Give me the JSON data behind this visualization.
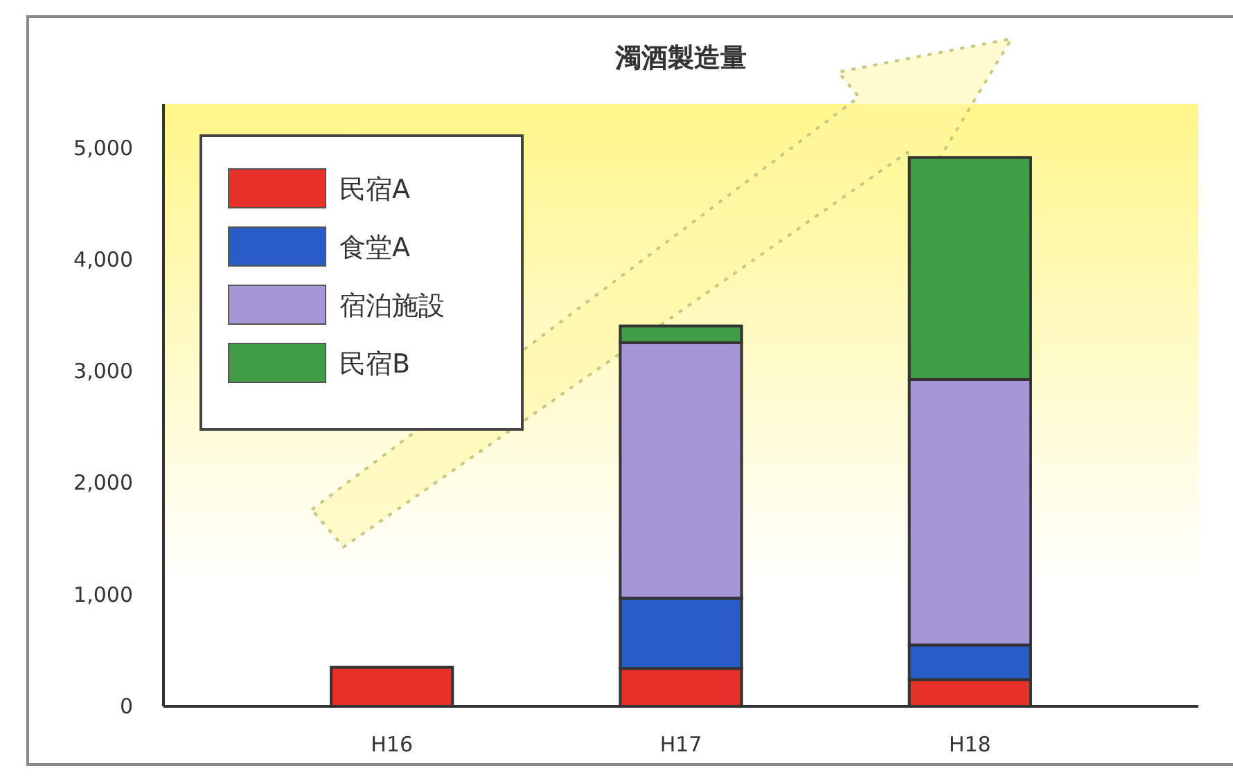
{
  "chart_data": {
    "type": "bar",
    "title": "濁酒製造量",
    "categories": [
      "H16",
      "H17",
      "H18"
    ],
    "stacked": true,
    "series": [
      {
        "name": "民宿A",
        "color": "#e8302a",
        "values": [
          350,
          340,
          240
        ]
      },
      {
        "name": "食堂A",
        "color": "#2a5cc8",
        "values": [
          null,
          630,
          310
        ]
      },
      {
        "name": "宿泊施設",
        "color": "#a696d8",
        "values": [
          null,
          2290,
          2380
        ]
      },
      {
        "name": "民宿B",
        "color": "#3f9e45",
        "values": [
          null,
          150,
          1990
        ]
      }
    ],
    "ylim": [
      0,
      5400
    ],
    "yticks": [
      {
        "value": 0,
        "label": "0"
      },
      {
        "value": 1000,
        "label": "1,000"
      },
      {
        "value": 2000,
        "label": "2,000"
      },
      {
        "value": 3000,
        "label": "3,000"
      },
      {
        "value": 4000,
        "label": "4,000"
      },
      {
        "value": 5000,
        "label": "5,000"
      }
    ],
    "grid": false,
    "legend": "top left"
  }
}
